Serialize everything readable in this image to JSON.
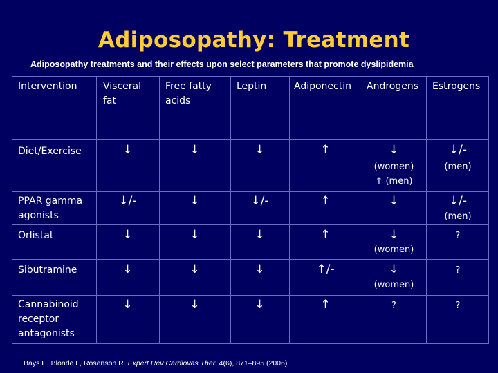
{
  "title": "Adiposopathy: Treatment",
  "subtitle": "Adiposopathy treatments and their effects upon select parameters that promote dyslipidemia",
  "table": {
    "headers": [
      "Intervention",
      "Visceral fat",
      "Free fatty acids",
      "Leptin",
      "Adiponectin",
      "Androgens",
      "Estrogens"
    ],
    "rows": [
      {
        "intervention": "Diet/Exercise",
        "visceral_fat": "↓",
        "free_fatty_acids": "↓",
        "leptin": "↓",
        "adiponectin": "↑",
        "androgens": "↓",
        "androgens_note": "(women)",
        "androgens_extra": "↑ (men)",
        "estrogens": "↓/-",
        "estrogens_note": "(men)"
      },
      {
        "intervention": "PPAR gamma agonists",
        "visceral_fat": "↓/-",
        "free_fatty_acids": "↓",
        "leptin": "↓/-",
        "adiponectin": "↑",
        "androgens": "↓",
        "estrogens": "↓/-",
        "estrogens_note": "(men)"
      },
      {
        "intervention": "Orlistat",
        "visceral_fat": "↓",
        "free_fatty_acids": "↓",
        "leptin": "↓",
        "adiponectin": "↑",
        "androgens": "↓",
        "androgens_note": "(women)",
        "estrogens": "?"
      },
      {
        "intervention": "Sibutramine",
        "visceral_fat": "↓",
        "free_fatty_acids": "↓",
        "leptin": "↓",
        "adiponectin": "↑/-",
        "androgens": "↓",
        "androgens_note": "(women)",
        "estrogens": "?"
      },
      {
        "intervention": "Cannabinoid receptor antagonists",
        "visceral_fat": "↓",
        "free_fatty_acids": "↓",
        "leptin": "↓",
        "adiponectin": "↑",
        "androgens": "?",
        "estrogens": "?"
      }
    ]
  },
  "citation": {
    "authors": "Bays H, Blonde L, Rosenson R. ",
    "journal": "Expert Rev Cardiovas Ther.",
    "details": " 4(6), 871–895 (2006)"
  },
  "colors": {
    "background": "#000060",
    "title": "#ffcc33",
    "text": "#ffffff",
    "grid": "#6c6cc0"
  }
}
